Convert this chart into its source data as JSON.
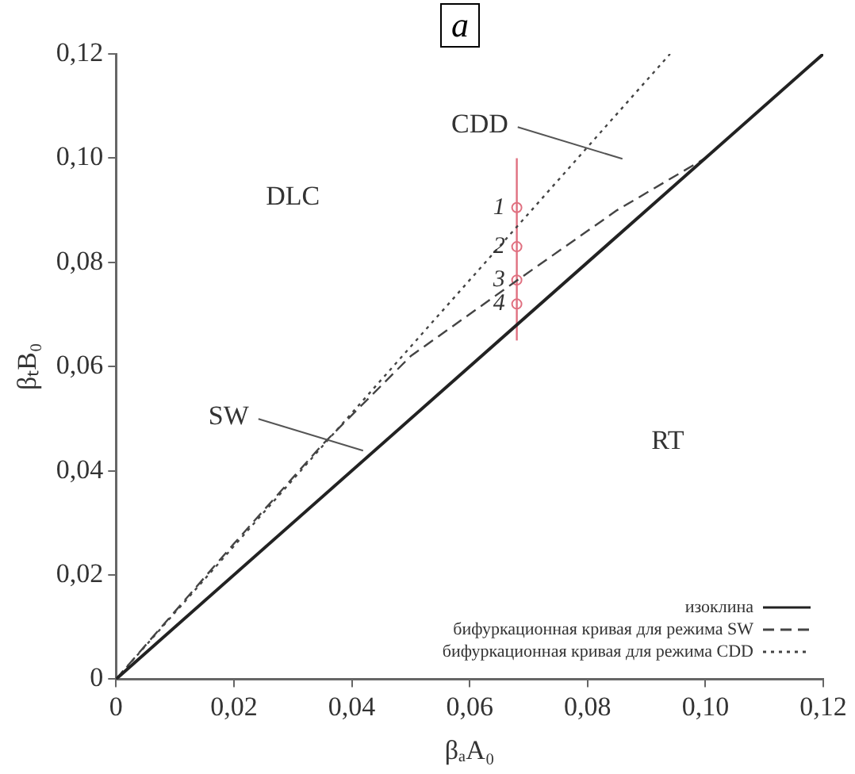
{
  "chart_data": {
    "type": "line",
    "title": "a",
    "xlabel": "βₐA₀",
    "ylabel": "βₜB₀",
    "xlim": [
      0,
      0.12
    ],
    "ylim": [
      0,
      0.12
    ],
    "xticks": [
      0,
      {
        "value": 0.02,
        "label": "0,02"
      },
      {
        "value": 0.04,
        "label": "0,04"
      },
      {
        "value": 0.06,
        "label": "0,06"
      },
      {
        "value": 0.08,
        "label": "0,08"
      },
      {
        "value": 0.1,
        "label": "0,10"
      },
      {
        "value": 0.12,
        "label": "0,12"
      }
    ],
    "yticks": [
      0,
      {
        "value": 0.02,
        "label": "0,02"
      },
      {
        "value": 0.04,
        "label": "0,04"
      },
      {
        "value": 0.06,
        "label": "0,06"
      },
      {
        "value": 0.08,
        "label": "0,08"
      },
      {
        "value": 0.1,
        "label": "0,10"
      },
      {
        "value": 0.12,
        "label": "0,12"
      }
    ],
    "grid": false,
    "legend": "bottom right",
    "marker": "none",
    "series": [
      {
        "name": "изоклина",
        "color": "#222222",
        "line_style": "solid",
        "x": [
          0,
          0.12
        ],
        "values": [
          0,
          0.12
        ]
      },
      {
        "name": "бифуркационная кривая для режима SW",
        "color": "#444444",
        "line_style": "dashed",
        "x": [
          0,
          0.02,
          0.035,
          0.05,
          0.068,
          0.085,
          0.1
        ],
        "values": [
          0,
          0.026,
          0.045,
          0.062,
          0.0765,
          0.09,
          0.1
        ]
      },
      {
        "name": "бифуркационная кривая для режима CDD",
        "color": "#444444",
        "line_style": "dotted",
        "x": [
          0,
          0.094
        ],
        "values": [
          0,
          0.12
        ]
      },
      {
        "color": "#e07080",
        "line_style": "solid",
        "x": [
          0.068,
          0.068
        ],
        "values": [
          0.065,
          0.1
        ]
      },
      {
        "type": "scatter",
        "color": "#e07080",
        "marker": "circle",
        "x": [
          0.068,
          0.068,
          0.068,
          0.068
        ],
        "values": [
          0.0905,
          0.083,
          0.0766,
          0.072
        ]
      }
    ],
    "annotations": [
      "DLC",
      {
        "text": "CDD",
        "x": 0.08,
        "y": 0.102
      },
      {
        "text": "SW",
        "x": 0.036,
        "y": 0.046
      },
      "RT",
      {
        "text": "1",
        "x": 0.066,
        "y": 0.0905
      },
      {
        "text": "2",
        "x": 0.066,
        "y": 0.083
      },
      {
        "text": "3",
        "x": 0.066,
        "y": 0.0766
      },
      {
        "text": "4",
        "x": 0.066,
        "y": 0.072
      }
    ]
  }
}
